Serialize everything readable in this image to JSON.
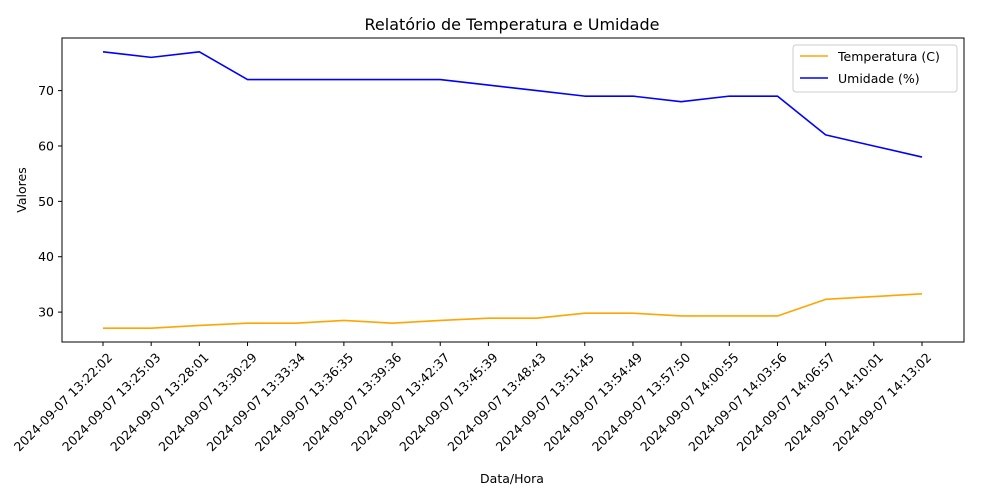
{
  "chart_data": {
    "type": "line",
    "title": "Relatório de Temperatura e Umidade",
    "xlabel": "Data/Hora",
    "ylabel": "Valores",
    "categories": [
      "2024-09-07 13:22:02",
      "2024-09-07 13:25:03",
      "2024-09-07 13:28:01",
      "2024-09-07 13:30:29",
      "2024-09-07 13:33:34",
      "2024-09-07 13:36:35",
      "2024-09-07 13:39:36",
      "2024-09-07 13:42:37",
      "2024-09-07 13:45:39",
      "2024-09-07 13:48:43",
      "2024-09-07 13:51:45",
      "2024-09-07 13:54:49",
      "2024-09-07 13:57:50",
      "2024-09-07 14:00:55",
      "2024-09-07 14:03:56",
      "2024-09-07 14:06:57",
      "2024-09-07 14:10:01",
      "2024-09-07 14:13:02"
    ],
    "series": [
      {
        "name": "Temperatura (C)",
        "color": "#ffa500",
        "values": [
          27.1,
          27.1,
          27.6,
          28.0,
          28.0,
          28.5,
          28.0,
          28.5,
          28.9,
          28.9,
          29.8,
          29.8,
          29.3,
          29.3,
          29.3,
          32.3,
          32.8,
          33.3
        ]
      },
      {
        "name": "Umidade (%)",
        "color": "#0000ff",
        "values": [
          77,
          76,
          77,
          72,
          72,
          72,
          72,
          72,
          71,
          70,
          69,
          69,
          68,
          69,
          69,
          62,
          60,
          58
        ]
      }
    ],
    "ylim": [
      24.6,
      79.5
    ],
    "yticks": [
      30,
      40,
      50,
      60,
      70
    ],
    "grid": false,
    "legend_position": "top-right"
  }
}
